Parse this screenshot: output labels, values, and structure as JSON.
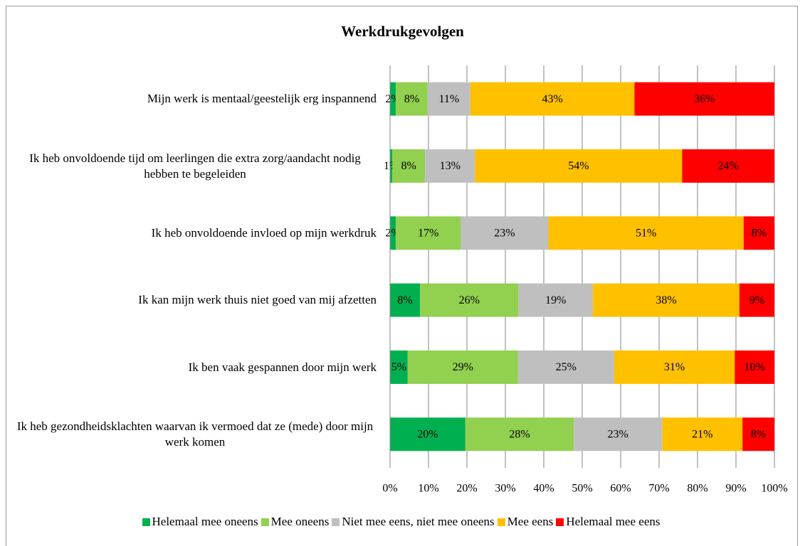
{
  "chart_data": {
    "type": "stacked-barh",
    "title": "Werkdrukgevolgen",
    "categories": [
      "Mijn werk is mentaal/geestelijk erg inspannend",
      "Ik heb onvoldoende tijd om leerlingen die extra zorg/aandacht nodig hebben te begeleiden",
      "Ik heb onvoldoende invloed op mijn werkdruk",
      "Ik kan mijn werk thuis niet goed van mij afzetten",
      "Ik ben vaak gespannen door mijn werk",
      "Ik heb gezondheidsklachten waarvan ik vermoed dat ze (mede) door mijn werk komen"
    ],
    "series": [
      {
        "name": "Helemaal mee oneens",
        "color": "#00b050",
        "values": [
          1.5,
          0.6,
          1.5,
          7.8,
          4.6,
          19.6
        ],
        "value_labels": [
          "2%",
          "1%",
          "2%",
          "8%",
          "5%",
          "20%"
        ]
      },
      {
        "name": "Mee oneens",
        "color": "#92d050",
        "values": [
          8.3,
          8.5,
          16.9,
          25.6,
          28.7,
          28.2
        ],
        "value_labels": [
          "8%",
          "8%",
          "17%",
          "26%",
          "29%",
          "28%"
        ]
      },
      {
        "name": "Niet mee eens, niet mee oneens",
        "color": "#bfbfbf",
        "values": [
          11.1,
          13.0,
          22.8,
          19.4,
          25.0,
          23.0
        ],
        "value_labels": [
          "11%",
          "13%",
          "23%",
          "19%",
          "25%",
          "23%"
        ]
      },
      {
        "name": "Mee eens",
        "color": "#ffc000",
        "values": [
          42.7,
          53.9,
          50.8,
          38.1,
          31.4,
          20.9
        ],
        "value_labels": [
          "43%",
          "54%",
          "51%",
          "38%",
          "31%",
          "21%"
        ]
      },
      {
        "name": "Helemaal mee eens",
        "color": "#ff0000",
        "values": [
          36.4,
          24.0,
          8.0,
          9.1,
          10.3,
          8.3
        ],
        "value_labels": [
          "36%",
          "24%",
          "8%",
          "9%",
          "10%",
          "8%"
        ]
      }
    ],
    "xlim": [
      0,
      100
    ],
    "xticks": [
      {
        "value": 0,
        "label": "0%"
      },
      {
        "value": 10,
        "label": "10%"
      },
      {
        "value": 20,
        "label": "20%"
      },
      {
        "value": 30,
        "label": "30%"
      },
      {
        "value": 40,
        "label": "40%"
      },
      {
        "value": 50,
        "label": "50%"
      },
      {
        "value": 60,
        "label": "60%"
      },
      {
        "value": 70,
        "label": "70%"
      },
      {
        "value": 80,
        "label": "80%"
      },
      {
        "value": 90,
        "label": "90%"
      },
      {
        "value": 100,
        "label": "100%"
      }
    ],
    "grid": true,
    "legend": "bottom"
  }
}
